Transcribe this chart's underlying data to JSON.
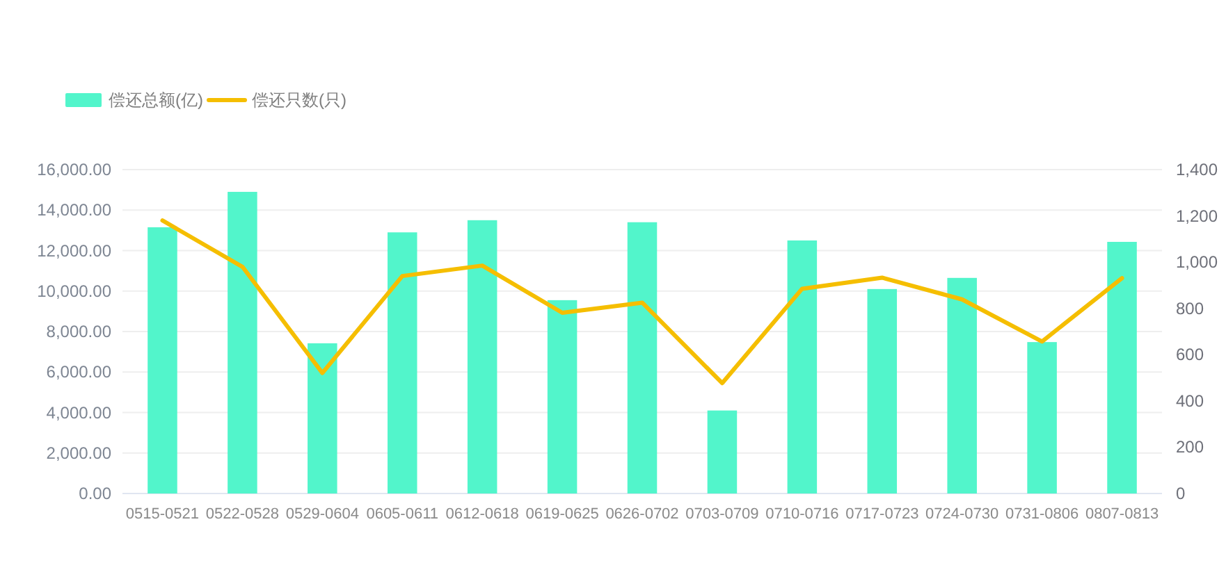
{
  "chart_data": {
    "type": "bar",
    "categories": [
      "0515-0521",
      "0522-0528",
      "0529-0604",
      "0605-0611",
      "0612-0618",
      "0619-0625",
      "0626-0702",
      "0703-0709",
      "0710-0716",
      "0717-0723",
      "0724-0730",
      "0731-0806",
      "0807-0813"
    ],
    "series": [
      {
        "name": "偿还总额(亿)",
        "color": "#52f5cb",
        "values": [
          13150,
          14900,
          7420,
          12900,
          13500,
          9550,
          13400,
          4100,
          12500,
          10100,
          10650,
          7480,
          12430
        ]
      },
      {
        "name": "偿还只数(只)",
        "type": "line",
        "axis": "y2",
        "color": "#f5be00",
        "values": [
          1180,
          980,
          521,
          940,
          985,
          781,
          825,
          477,
          885,
          933,
          839,
          657,
          931
        ]
      }
    ],
    "ylim": [
      0,
      16000
    ],
    "yticks": [
      {
        "value": 0,
        "label": "0.00"
      },
      {
        "value": 2000,
        "label": "2,000.00"
      },
      {
        "value": 4000,
        "label": "4,000.00"
      },
      {
        "value": 6000,
        "label": "6,000.00"
      },
      {
        "value": 8000,
        "label": "8,000.00"
      },
      {
        "value": 10000,
        "label": "10,000.00"
      },
      {
        "value": 12000,
        "label": "12,000.00"
      },
      {
        "value": 14000,
        "label": "14,000.00"
      },
      {
        "value": 16000,
        "label": "16,000.00"
      }
    ],
    "y2lim": [
      0,
      1400
    ],
    "y2ticks": [
      0,
      200,
      400,
      600,
      800,
      {
        "value": 1000,
        "label": "1,000"
      },
      {
        "value": 1200,
        "label": "1,200"
      },
      {
        "value": 1400,
        "label": "1,400"
      }
    ],
    "grid": "y",
    "legend": "top left"
  }
}
